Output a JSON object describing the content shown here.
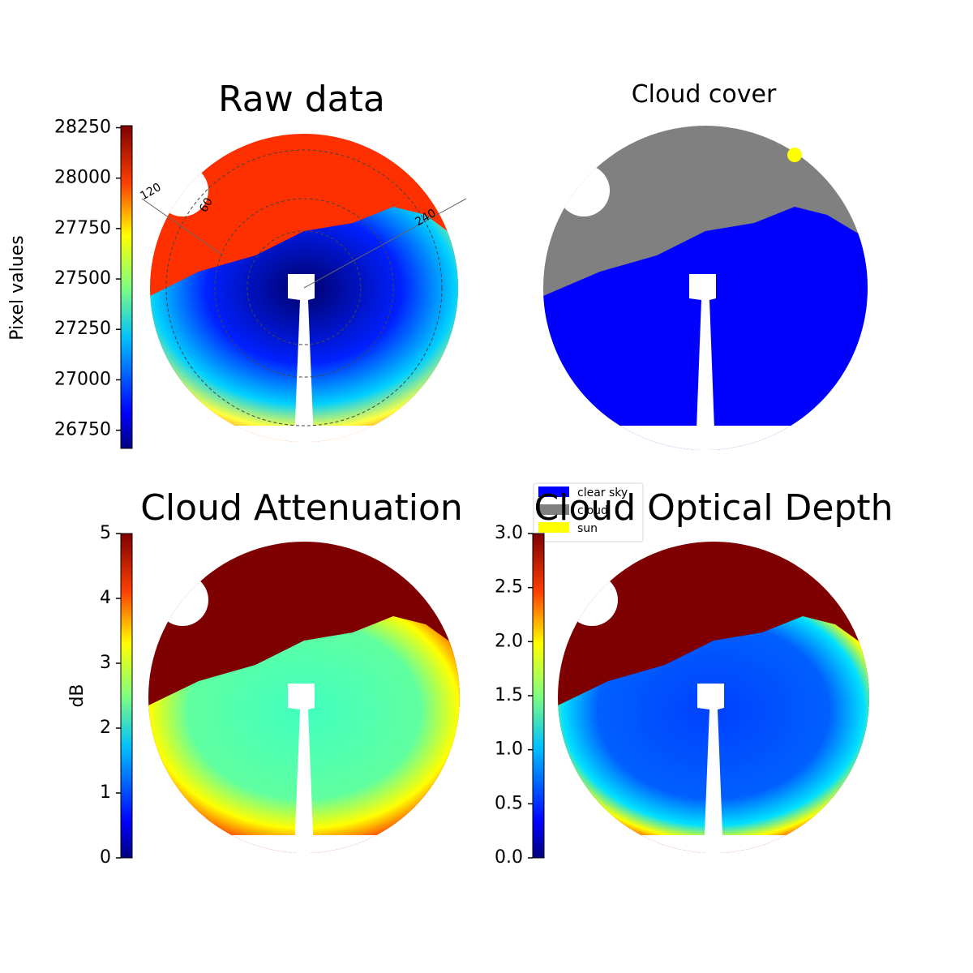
{
  "panels": [
    {
      "title": "Raw data",
      "colorbar": {
        "label": "Pixel values",
        "lim": [
          26660,
          28260
        ],
        "ticks": [
          26750,
          27000,
          27250,
          27500,
          27750,
          28000,
          28250
        ]
      },
      "polar_labels": [
        "120",
        "60",
        "240"
      ]
    },
    {
      "title": "Cloud cover",
      "legend": [
        {
          "name": "clear sky",
          "color": "#0000ff"
        },
        {
          "name": "cloud",
          "color": "#808080"
        },
        {
          "name": "sun",
          "color": "#ffff00"
        }
      ]
    },
    {
      "title": "Cloud Attenuation",
      "colorbar": {
        "label": "dB",
        "lim": [
          0,
          5
        ],
        "ticks": [
          0,
          1,
          2,
          3,
          4,
          5
        ]
      }
    },
    {
      "title": "Cloud Optical Depth",
      "colorbar": {
        "lim": [
          0,
          3
        ],
        "ticks": [
          {
            "value": 0,
            "label": "0.0"
          },
          {
            "value": 0.5,
            "label": "0.5"
          },
          {
            "value": 1,
            "label": "1.0"
          },
          {
            "value": 1.5,
            "label": "1.5"
          },
          {
            "value": 2,
            "label": "2.0"
          },
          {
            "value": 2.5,
            "label": "2.5"
          },
          {
            "value": 3,
            "label": "3.0"
          }
        ]
      }
    }
  ]
}
